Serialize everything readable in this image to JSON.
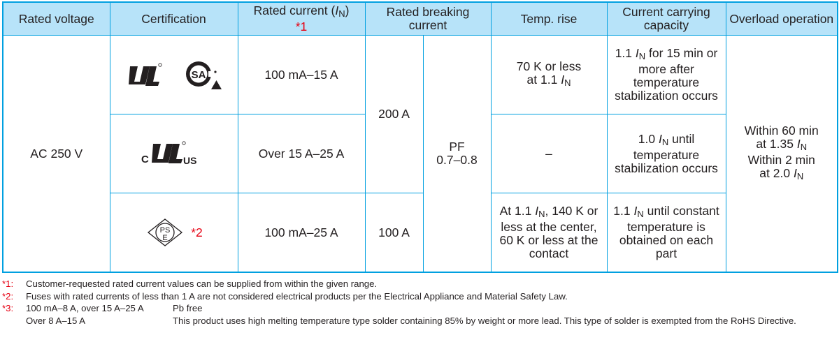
{
  "headers": {
    "rated_voltage": "Rated voltage",
    "certification": "Certification",
    "rated_current": "Rated current (",
    "rated_current_sym": "I",
    "rated_current_sub": "N",
    "rated_current_close": ")",
    "rated_current_note": "*1",
    "rated_breaking": "Rated breaking current",
    "temp_rise": "Temp. rise",
    "carrying": "Current carrying capacity",
    "overload": "Overload operation"
  },
  "voltage": "AC 250 V",
  "rows": [
    {
      "rated_current": "100 mA–15 A",
      "temp_rise_a": "70 K or less",
      "temp_rise_b": "at 1.1 ",
      "carry_a": "1.1 ",
      "carry_b": " for 15 min or more after temperature stabilization occurs"
    },
    {
      "rated_current": "Over 15 A–25 A",
      "temp_rise": "–",
      "carry_a": "1.0 ",
      "carry_b": " until temperature stabilization occurs"
    },
    {
      "rated_current": "100 mA–25 A",
      "cert_note": "*2",
      "temp_rise_a": "At 1.1 ",
      "temp_rise_b": ", 140 K or less at the center, 60 K or less at the contact",
      "carry_a": "1.1 ",
      "carry_b": " until constant temperature is obtained on each part"
    }
  ],
  "breaking_200": "200 A",
  "breaking_100": "100 A",
  "pf_label": "PF",
  "pf_value": "0.7–0.8",
  "overload": {
    "l1": "Within 60 min",
    "l2": "at 1.35 ",
    "l3": "Within 2 min",
    "l4": "at 2.0 "
  },
  "sym_I": "I",
  "sym_N": "N",
  "logos": {
    "ul": "UL",
    "csa": "SA",
    "c": "C",
    "us": "US",
    "pse_p": "PS",
    "pse_e": "E"
  },
  "notes": {
    "n1_key": "*1:",
    "n1_text": "Customer-requested rated current values can be supplied from within the given range.",
    "n2_key": "*2:",
    "n2_text": "Fuses with rated currents of less than 1 A are not considered electrical products per the Electrical Appliance and Material Safety Law.",
    "n3_key": "*3:",
    "n3_range1": "100 mA–8 A, over 15 A–25 A",
    "n3_text1": "Pb free",
    "n3_range2": "Over 8 A–15 A",
    "n3_text2": "This product uses high melting temperature type solder containing 85% by weight or more lead. This type of solder is exempted from the RoHS Directive."
  }
}
